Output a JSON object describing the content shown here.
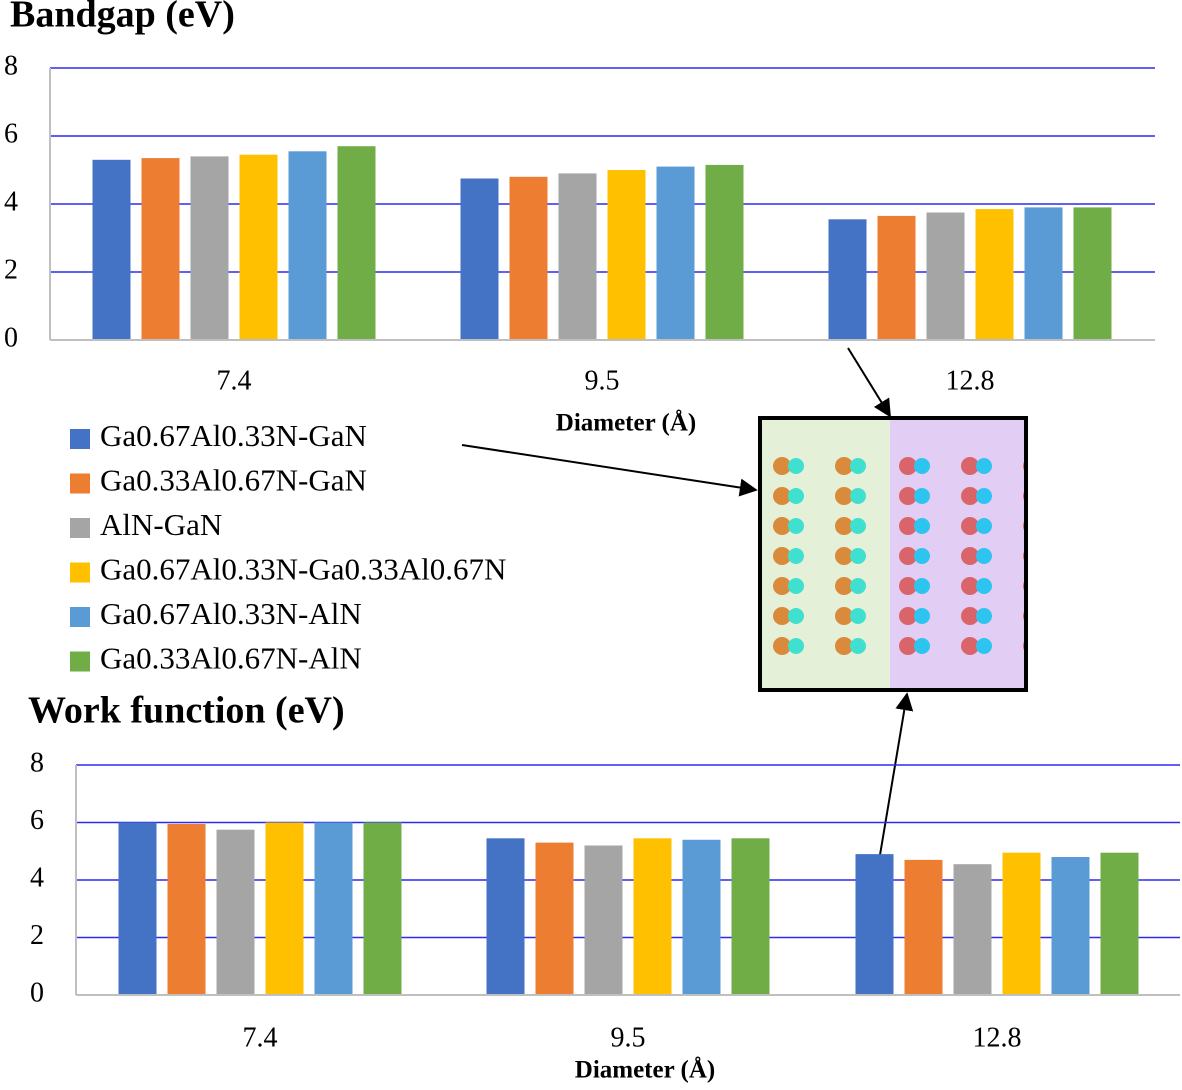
{
  "chart_data": [
    {
      "type": "bar",
      "title": "Bandgap (eV)",
      "xlabel": "Diameter (Å)",
      "categories": [
        "7.4",
        "9.5",
        "12.8"
      ],
      "series": [
        {
          "name": "Ga0.67Al0.33N-GaN",
          "color": "#4472c4",
          "values": [
            5.3,
            4.75,
            3.55
          ]
        },
        {
          "name": "Ga0.33Al0.67N-GaN",
          "color": "#ed7d31",
          "values": [
            5.35,
            4.8,
            3.65
          ]
        },
        {
          "name": "AlN-GaN",
          "color": "#a5a5a5",
          "values": [
            5.4,
            4.9,
            3.75
          ]
        },
        {
          "name": "Ga0.67Al0.33N-Ga0.33Al0.67N",
          "color": "#ffc000",
          "values": [
            5.45,
            5.0,
            3.85
          ]
        },
        {
          "name": "Ga0.67Al0.33N-AlN",
          "color": "#5b9bd5",
          "values": [
            5.55,
            5.1,
            3.9
          ]
        },
        {
          "name": "Ga0.33Al0.67N-AlN",
          "color": "#70ad47",
          "values": [
            5.7,
            5.15,
            3.9
          ]
        }
      ],
      "ylim": [
        0,
        8
      ],
      "yticks": [
        0,
        2,
        4,
        6,
        8
      ],
      "grid": true
    },
    {
      "type": "bar",
      "title": "Work function (eV)",
      "xlabel": "Diameter (Å)",
      "categories": [
        "7.4",
        "9.5",
        "12.8"
      ],
      "series": [
        {
          "color": "#4472c4",
          "values": [
            6.0,
            5.45,
            4.9
          ]
        },
        {
          "color": "#ed7d31",
          "values": [
            5.95,
            5.3,
            4.7
          ]
        },
        {
          "color": "#a5a5a5",
          "values": [
            5.75,
            5.2,
            4.55
          ]
        },
        {
          "color": "#ffc000",
          "values": [
            6.0,
            5.45,
            4.95
          ]
        },
        {
          "color": "#5b9bd5",
          "values": [
            6.0,
            5.4,
            4.8
          ]
        },
        {
          "color": "#70ad47",
          "values": [
            6.0,
            5.45,
            4.95
          ]
        }
      ],
      "ylim": [
        0,
        8
      ],
      "yticks": [
        0,
        2,
        4,
        6,
        8
      ],
      "grid": true
    }
  ]
}
